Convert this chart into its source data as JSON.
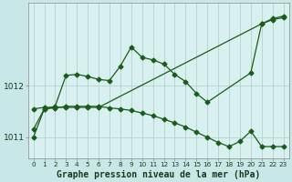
{
  "title": "Graphe pression niveau de la mer (hPa)",
  "bg_color": "#c8e8e8",
  "plot_bg_color": "#d8f0f0",
  "line_color": "#1a5c1a",
  "grid_color": "#b0cccc",
  "xlim": [
    -0.5,
    23.5
  ],
  "ylim": [
    1010.6,
    1013.6
  ],
  "yticks": [
    1011,
    1012
  ],
  "xticks": [
    0,
    1,
    2,
    3,
    4,
    5,
    6,
    7,
    8,
    9,
    10,
    11,
    12,
    13,
    14,
    15,
    16,
    17,
    18,
    19,
    20,
    21,
    22,
    23
  ],
  "xlabel_fontsize": 7.0,
  "ytick_fontsize": 6.5,
  "xtick_fontsize": 5.2,
  "series1_x": [
    0,
    1,
    2,
    3,
    4,
    5,
    6,
    7,
    8,
    9,
    10,
    11,
    12,
    13,
    14,
    15,
    16,
    20,
    21,
    22,
    23
  ],
  "series1_y": [
    1011.15,
    1011.55,
    1011.6,
    1012.2,
    1012.22,
    1012.18,
    1012.12,
    1012.1,
    1012.38,
    1012.75,
    1012.55,
    1012.5,
    1012.42,
    1012.22,
    1012.08,
    1011.85,
    1011.68,
    1012.25,
    1013.2,
    1013.3,
    1013.35
  ],
  "series2_x": [
    0,
    1,
    2,
    3,
    4,
    5,
    6,
    21,
    22,
    23
  ],
  "series2_y": [
    1011.55,
    1011.58,
    1011.58,
    1011.58,
    1011.58,
    1011.58,
    1011.58,
    1013.2,
    1013.28,
    1013.32
  ],
  "series3_x": [
    0,
    1,
    2,
    3,
    4,
    5,
    6,
    7,
    8,
    9,
    10,
    11,
    12,
    13,
    14,
    15,
    16,
    17,
    18,
    19,
    20,
    21,
    22,
    23
  ],
  "series3_y": [
    1011.0,
    1011.55,
    1011.57,
    1011.6,
    1011.6,
    1011.6,
    1011.6,
    1011.57,
    1011.55,
    1011.52,
    1011.47,
    1011.42,
    1011.35,
    1011.28,
    1011.2,
    1011.1,
    1011.0,
    1010.9,
    1010.82,
    1010.92,
    1011.12,
    1010.82,
    1010.82,
    1010.82
  ]
}
